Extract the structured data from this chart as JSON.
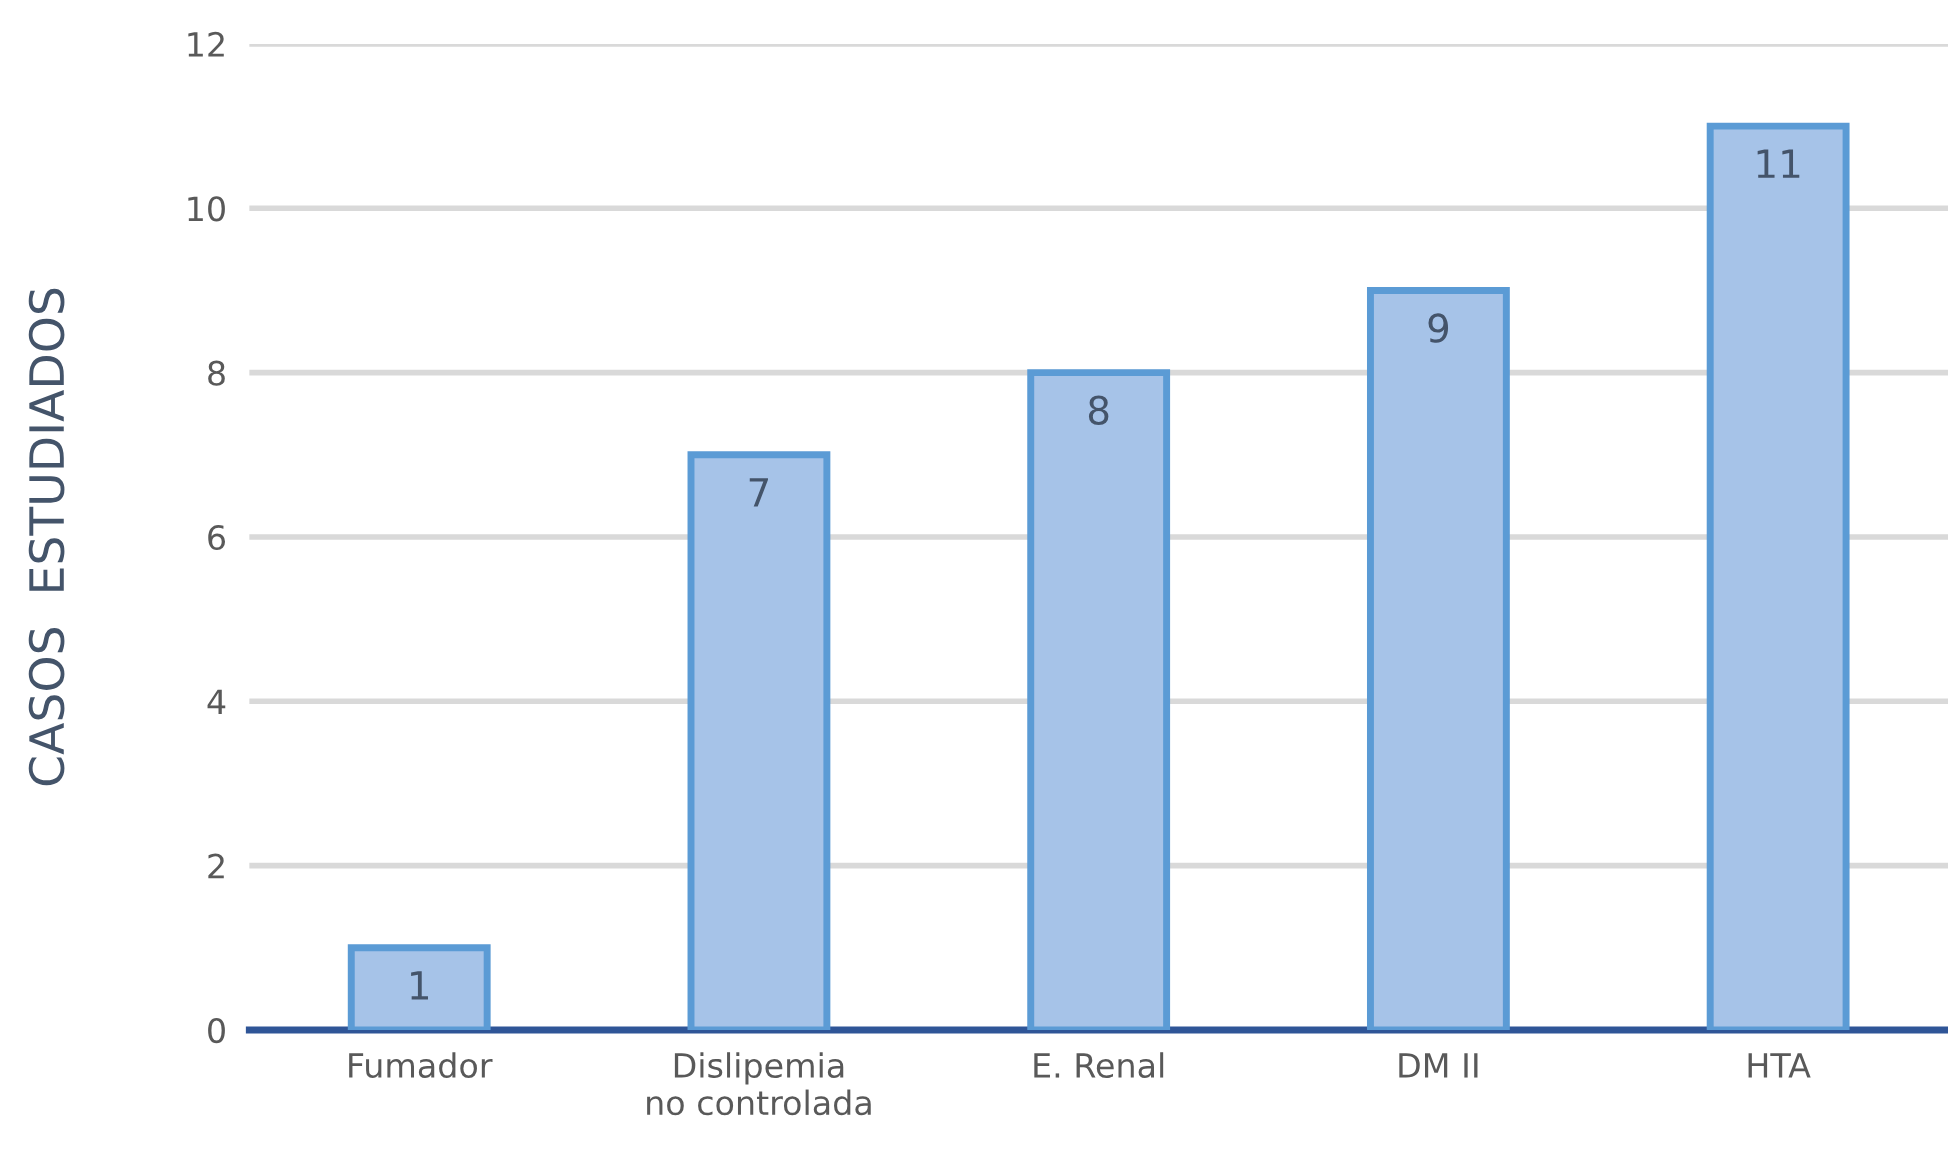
{
  "chart_data": {
    "type": "bar",
    "ylabel": "CASOS  ESTUDIADOS",
    "categories": [
      "Fumador",
      "Dislipemia\nno controlada",
      "E. Renal",
      "DM II",
      "HTA"
    ],
    "values": [
      1,
      7,
      8,
      9,
      11
    ],
    "color": "#a6c3e8",
    "ylim": [
      0,
      12
    ],
    "yticks": [
      0,
      2,
      4,
      6,
      8,
      10,
      12
    ],
    "grid": "y",
    "data_labels": true
  }
}
